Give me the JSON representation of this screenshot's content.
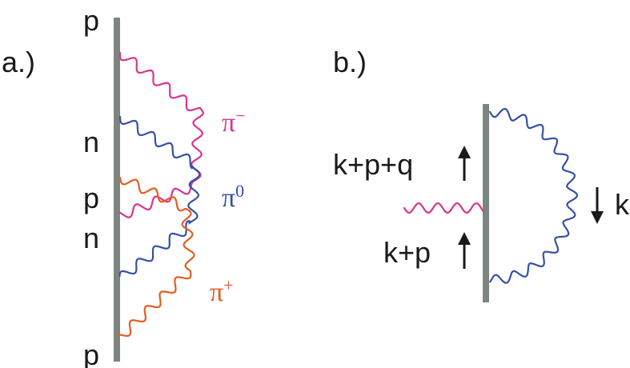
{
  "colors": {
    "line": "#7d8581",
    "pi_minus": "#d9358f",
    "pi_zero": "#3550a8",
    "pi_plus": "#e25d22",
    "text": "#1a1a1a"
  },
  "panel_a": {
    "label": "a.)",
    "nucleons": [
      "p",
      "n",
      "p",
      "n",
      "p"
    ],
    "pions": [
      {
        "symbol": "π",
        "charge": "−"
      },
      {
        "symbol": "π",
        "charge": "0"
      },
      {
        "symbol": "π",
        "charge": "+"
      }
    ]
  },
  "panel_b": {
    "label": "b.)",
    "momentum_top": "k+p+q",
    "momentum_bottom": "k+p",
    "momentum_loop": "k"
  }
}
